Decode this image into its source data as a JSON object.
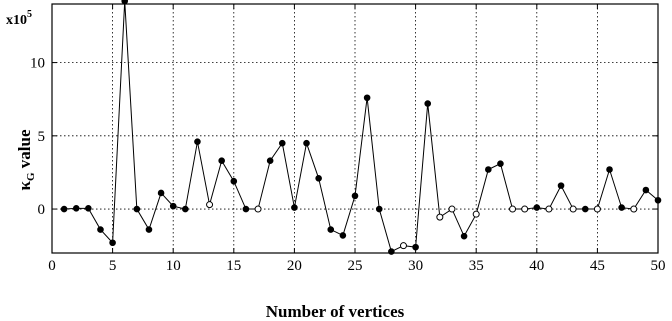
{
  "chart_data": {
    "type": "scatter",
    "xlabel": "Number of vertices",
    "ylabel": "κ",
    "ylabel_subscript": "G",
    "ylabel_suffix": " value",
    "multiplier_base": "x10",
    "multiplier_exp": "5",
    "xlim": [
      0,
      50
    ],
    "ylim": [
      -3,
      14
    ],
    "xticks": [
      0,
      5,
      10,
      15,
      20,
      25,
      30,
      35,
      40,
      45,
      50
    ],
    "yticks": [
      0,
      5,
      10
    ],
    "grid": true,
    "series": [
      {
        "x": [
          1,
          2,
          3,
          4,
          5,
          6,
          7,
          8,
          9,
          10,
          11,
          12,
          13,
          14,
          15,
          16,
          17,
          18,
          19,
          20,
          21,
          22,
          23,
          24,
          25,
          26,
          27,
          28,
          29,
          30,
          31,
          32,
          33,
          34,
          35,
          36,
          37,
          38,
          39,
          40,
          41,
          42,
          43,
          44,
          45,
          46,
          47,
          48,
          49,
          50
        ],
        "y": [
          0,
          0.05,
          0.05,
          -1.4,
          -2.3,
          14.2,
          0,
          -1.4,
          1.1,
          0.2,
          0,
          4.6,
          0.3,
          3.3,
          1.9,
          0,
          0,
          3.3,
          4.5,
          0.1,
          4.5,
          2.1,
          -1.4,
          -1.8,
          0.9,
          7.6,
          0,
          -2.9,
          -2.5,
          -2.6,
          7.2,
          -0.55,
          0,
          -1.85,
          -0.35,
          2.7,
          3.1,
          0,
          0,
          0.1,
          0,
          1.6,
          0,
          0,
          0,
          2.7,
          0.1,
          0,
          1.3,
          0.6
        ],
        "marker": [
          "filled",
          "filled",
          "filled",
          "filled",
          "filled",
          "filled",
          "filled",
          "filled",
          "filled",
          "filled",
          "filled",
          "filled",
          "open",
          "filled",
          "filled",
          "filled",
          "open",
          "filled",
          "filled",
          "filled",
          "filled",
          "filled",
          "filled",
          "filled",
          "filled",
          "filled",
          "filled",
          "filled",
          "open",
          "filled",
          "filled",
          "open",
          "open",
          "filled",
          "open",
          "filled",
          "filled",
          "open",
          "open",
          "filled",
          "open",
          "filled",
          "open",
          "filled",
          "open",
          "filled",
          "filled",
          "open",
          "filled",
          "filled"
        ]
      }
    ]
  }
}
